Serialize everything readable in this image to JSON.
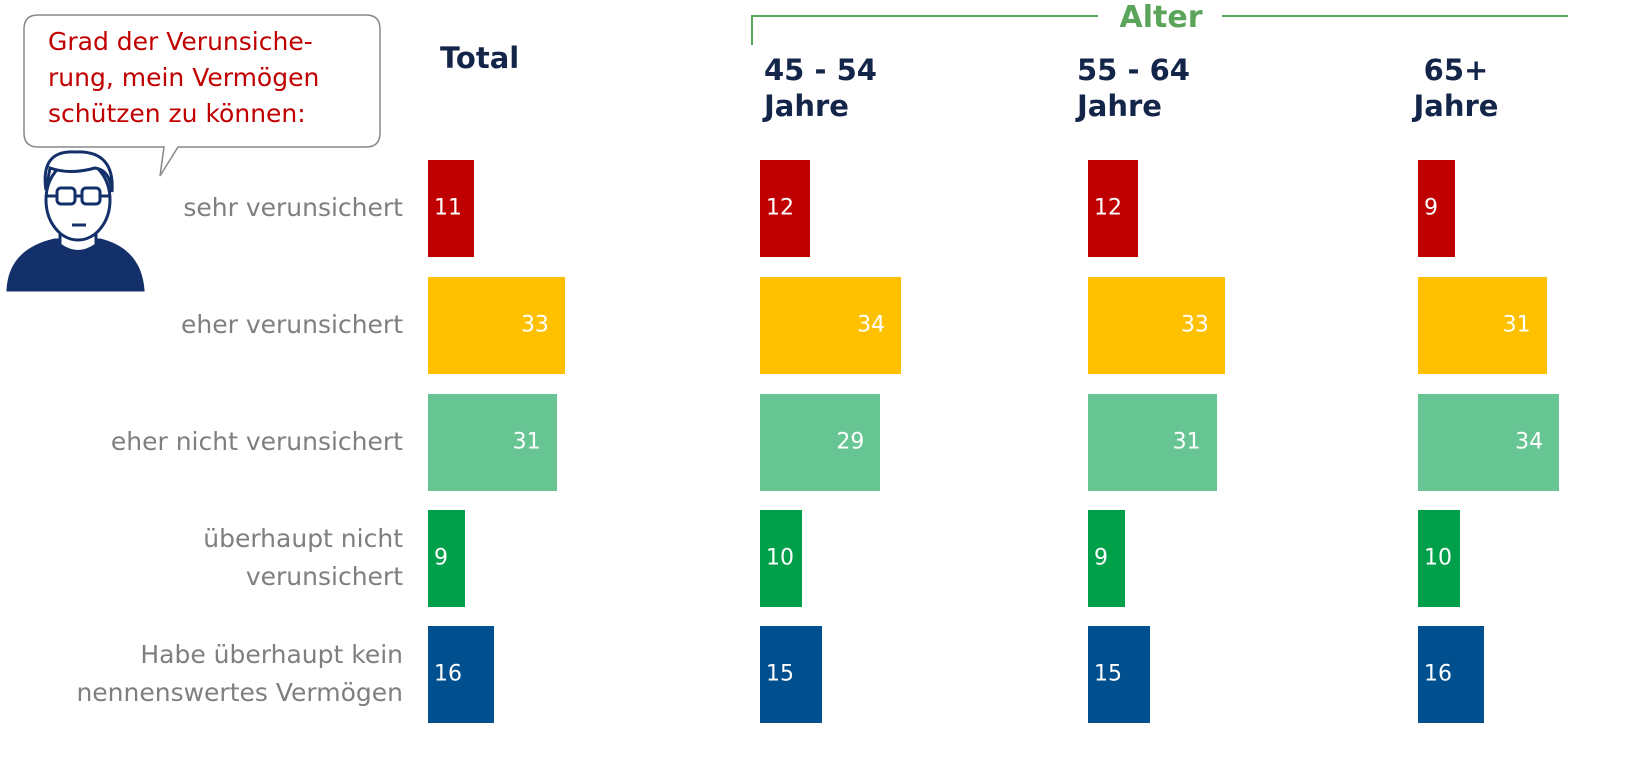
{
  "chart_data": {
    "type": "bar",
    "orientation": "horizontal",
    "bubble": [
      "Grad der Verunsiche-",
      "rung, mein Vermögen",
      "schützen zu können:"
    ],
    "group_label": "Alter",
    "categories": [
      "sehr verunsichert",
      "eher verunsichert",
      "eher nicht verunsichert",
      "überhaupt nicht verunsichert",
      "Habe überhaupt kein nennenswertes Vermögen"
    ],
    "colors": [
      "#c00000",
      "#ffc000",
      "#66c592",
      "#00a04a",
      "#00508f"
    ],
    "series": [
      {
        "name": "Total",
        "values": [
          11,
          33,
          31,
          9,
          16
        ]
      },
      {
        "name": "45 - 54 Jahre",
        "values": [
          12,
          34,
          29,
          10,
          15
        ]
      },
      {
        "name": "55 - 64 Jahre",
        "values": [
          12,
          33,
          31,
          9,
          15
        ]
      },
      {
        "name": "65+ Jahre",
        "values": [
          9,
          31,
          34,
          10,
          16
        ]
      }
    ]
  }
}
